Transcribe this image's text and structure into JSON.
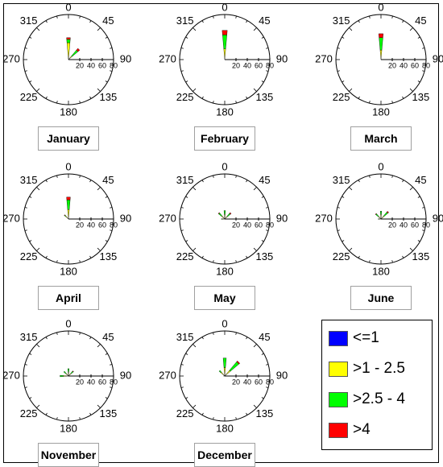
{
  "chart_data": {
    "type": "wind-rose",
    "radial_ticks": [
      "20",
      "40",
      "60",
      "80"
    ],
    "radial_max": 80,
    "direction_labels": [
      "0",
      "45",
      "90",
      "135",
      "180",
      "225",
      "270",
      "315"
    ],
    "legend": [
      {
        "label": "<=1",
        "color": "#0000ff"
      },
      {
        "label": ">1 - 2.5",
        "color": "#ffff00"
      },
      {
        "label": ">2.5 - 4",
        "color": "#00ff00"
      },
      {
        "label": ">4",
        "color": "#ff0000"
      }
    ],
    "panels": [
      {
        "month": "January",
        "bars": [
          {
            "dir": 0,
            "segments": [
              2,
              28,
              6,
              3
            ]
          },
          {
            "dir": 45,
            "segments": [
              1,
              7,
              14,
              4
            ]
          }
        ]
      },
      {
        "month": "February",
        "bars": [
          {
            "dir": 0,
            "segments": [
              1,
              18,
              25,
              8
            ]
          }
        ]
      },
      {
        "month": "March",
        "bars": [
          {
            "dir": 0,
            "segments": [
              1,
              16,
              22,
              7
            ]
          }
        ]
      },
      {
        "month": "April",
        "bars": [
          {
            "dir": 0,
            "segments": [
              1,
              16,
              17,
              5
            ]
          },
          {
            "dir": 315,
            "segments": [
              1,
              6,
              2,
              1
            ]
          }
        ]
      },
      {
        "month": "May",
        "bars": [
          {
            "dir": 0,
            "segments": [
              1,
              7,
              7,
              0
            ]
          },
          {
            "dir": 45,
            "segments": [
              1,
              5,
              7,
              2
            ]
          },
          {
            "dir": 315,
            "segments": [
              1,
              6,
              7,
              1
            ]
          },
          {
            "dir": 270,
            "segments": [
              0,
              4,
              2,
              0
            ]
          }
        ]
      },
      {
        "month": "June",
        "bars": [
          {
            "dir": 0,
            "segments": [
              1,
              7,
              6,
              0
            ]
          },
          {
            "dir": 45,
            "segments": [
              1,
              6,
              9,
              2
            ]
          },
          {
            "dir": 315,
            "segments": [
              1,
              5,
              6,
              1
            ]
          },
          {
            "dir": 270,
            "segments": [
              0,
              3,
              2,
              0
            ]
          }
        ]
      },
      {
        "month": "November",
        "bars": [
          {
            "dir": 0,
            "segments": [
              1,
              6,
              6,
              0
            ]
          },
          {
            "dir": 45,
            "segments": [
              1,
              5,
              5,
              1
            ]
          },
          {
            "dir": 315,
            "segments": [
              1,
              5,
              5,
              0
            ]
          },
          {
            "dir": 270,
            "segments": [
              0,
              9,
              6,
              0
            ]
          }
        ]
      },
      {
        "month": "December",
        "bars": [
          {
            "dir": 0,
            "segments": [
              1,
              14,
              17,
              0
            ]
          },
          {
            "dir": 45,
            "segments": [
              1,
              12,
              20,
              2
            ]
          },
          {
            "dir": 315,
            "segments": [
              1,
              8,
              4,
              0
            ]
          },
          {
            "dir": 270,
            "segments": [
              0,
              2,
              0,
              0
            ]
          }
        ]
      }
    ]
  }
}
